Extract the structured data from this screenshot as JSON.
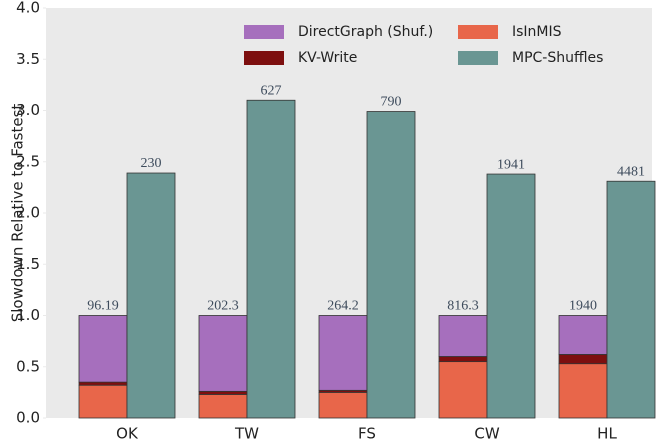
{
  "chart_data": {
    "type": "grouped_stacked_bar",
    "ylabel": "Slowdown Relative to Fastest",
    "categories": [
      "OK",
      "TW",
      "FS",
      "CW",
      "HL"
    ],
    "stack_series": [
      {
        "name": "IsInMIS",
        "color": "#e8664a",
        "values": [
          0.32,
          0.23,
          0.25,
          0.55,
          0.53
        ]
      },
      {
        "name": "KV-Write",
        "color": "#7d0f0f",
        "values": [
          0.03,
          0.03,
          0.02,
          0.05,
          0.09
        ]
      },
      {
        "name": "DirectGraph (Shuf.)",
        "color": "#a66fbd",
        "values": [
          0.65,
          0.74,
          0.73,
          0.4,
          0.38
        ]
      }
    ],
    "side_series": {
      "name": "MPC-Shuffles",
      "color": "#6a9693",
      "values": [
        2.39,
        3.1,
        2.99,
        2.38,
        2.31
      ]
    },
    "stack_annotations": [
      "96.19",
      "202.3",
      "264.2",
      "816.3",
      "1940"
    ],
    "side_annotations": [
      "230",
      "627",
      "790",
      "1941",
      "4481"
    ],
    "legend_order": [
      "DirectGraph (Shuf.)",
      "IsInMIS",
      "KV-Write",
      "MPC-Shuffles"
    ],
    "ylim": [
      0,
      4.0
    ],
    "yticks": [
      {
        "value": 0,
        "label": "0.0"
      },
      0.5,
      {
        "value": 1.0,
        "label": "1.0"
      },
      1.5,
      {
        "value": 2.0,
        "label": "2.0"
      },
      2.5,
      {
        "value": 3.0,
        "label": "3.0"
      },
      3.5,
      {
        "value": 4.0,
        "label": "4.0"
      }
    ],
    "grid": false,
    "legend": "upper right"
  }
}
